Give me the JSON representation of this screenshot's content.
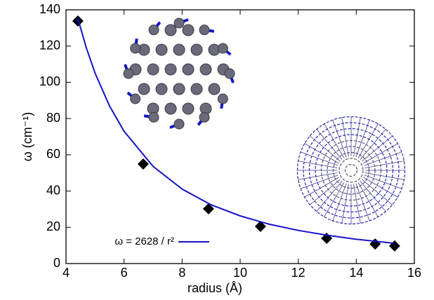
{
  "chart_data": {
    "type": "scatter",
    "xlabel": "radius  (Å)",
    "ylabel": "ω  (cm⁻¹)",
    "xlim": [
      4,
      16
    ],
    "xticks": [
      4,
      6,
      8,
      10,
      12,
      14,
      16
    ],
    "ylim": [
      0,
      140
    ],
    "yticks": [
      0,
      20,
      40,
      60,
      80,
      100,
      120,
      140
    ],
    "legend": "lower left",
    "series": [
      {
        "x": [
          4.41,
          6.66,
          8.91,
          10.7,
          12.98,
          14.65,
          15.32
        ],
        "values": [
          133.8,
          54.9,
          30.2,
          20.5,
          13.9,
          10.8,
          9.7
        ],
        "color": "#000000",
        "marker": "diamond"
      },
      {
        "name": "ω = 2628 / r²",
        "color": "#1414c8",
        "line": true,
        "x": [
          4.4,
          4.7,
          5,
          5.5,
          6,
          7,
          8,
          9,
          10,
          11,
          12,
          13,
          14,
          15,
          15.3
        ],
        "values": [
          135.7,
          119,
          105.1,
          86.9,
          73,
          53.6,
          41.1,
          32.4,
          26.3,
          21.7,
          18.3,
          15.6,
          13.4,
          11.7,
          11.2
        ]
      }
    ]
  }
}
